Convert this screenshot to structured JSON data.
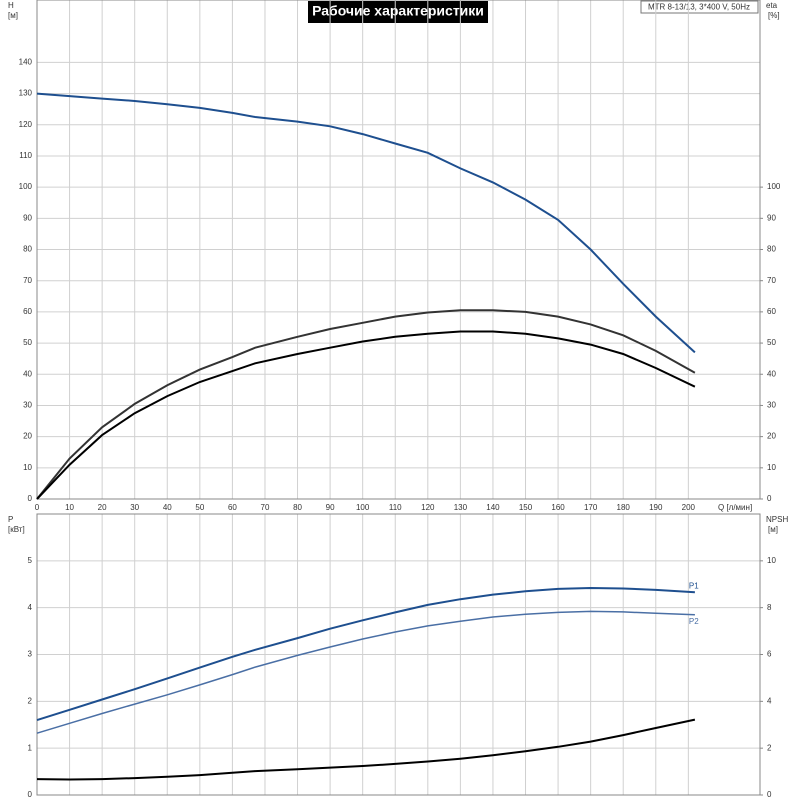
{
  "header": {
    "title": "Рабочие характеристики",
    "model": "MTR 8-13/13, 3*400 V, 50Hz"
  },
  "chart_data": [
    {
      "type": "line",
      "y_label": "H",
      "y_unit": "[м]",
      "y2_label": "eta",
      "y2_unit": "[%]",
      "x_label": "Q [л/мин]",
      "xlim": [
        0,
        222
      ],
      "xticks": [
        0,
        10,
        20,
        30,
        40,
        50,
        60,
        70,
        80,
        90,
        100,
        110,
        120,
        130,
        140,
        150,
        160,
        170,
        180,
        190,
        200
      ],
      "xtick_labels": true,
      "ylim": [
        0,
        160
      ],
      "yticks": [
        0,
        10,
        20,
        30,
        40,
        50,
        60,
        70,
        80,
        90,
        100,
        110,
        120,
        130,
        140
      ],
      "y2lim": [
        0,
        160
      ],
      "y2ticks": [
        0,
        10,
        20,
        30,
        40,
        50,
        60,
        70,
        80,
        90,
        100
      ],
      "grid": true,
      "x": [
        0,
        10,
        20,
        30,
        40,
        50,
        60,
        67,
        80,
        90,
        100,
        110,
        120,
        130,
        140,
        150,
        160,
        170,
        180,
        190,
        202
      ],
      "series": [
        {
          "color": "#1e4f8f",
          "values": [
            130,
            129.2,
            128.4,
            127.6,
            126.6,
            125.4,
            123.8,
            122.5,
            121,
            119.5,
            117,
            114,
            111,
            106,
            101.5,
            96,
            89.5,
            80,
            69,
            58.5,
            47
          ]
        },
        {
          "color": "#333333",
          "axis": "y2",
          "values": [
            0,
            13,
            23,
            30.5,
            36.5,
            41.5,
            45.5,
            48.5,
            52,
            54.5,
            56.5,
            58.5,
            59.8,
            60.5,
            60.5,
            60,
            58.5,
            56,
            52.5,
            47.5,
            40.5
          ]
        },
        {
          "color": "#000000",
          "axis": "y2",
          "values": [
            0,
            11,
            20.5,
            27.5,
            33,
            37.5,
            41,
            43.5,
            46.5,
            48.5,
            50.5,
            52,
            53,
            53.7,
            53.7,
            53,
            51.5,
            49.5,
            46.5,
            42,
            36
          ]
        }
      ]
    },
    {
      "type": "line",
      "y_label": "P",
      "y_unit": "[кВт]",
      "y2_label": "NPSH",
      "y2_unit": "[м]",
      "xlim": [
        0,
        222
      ],
      "xticks": [
        0,
        10,
        20,
        30,
        40,
        50,
        60,
        70,
        80,
        90,
        100,
        110,
        120,
        130,
        140,
        150,
        160,
        170,
        180,
        190,
        200
      ],
      "xtick_labels": false,
      "ylim": [
        0,
        6
      ],
      "yticks": [
        0,
        1,
        2,
        3,
        4,
        5
      ],
      "y2lim": [
        0,
        12
      ],
      "y2ticks": [
        0,
        2,
        4,
        6,
        8,
        10
      ],
      "grid": true,
      "x": [
        0,
        10,
        20,
        30,
        40,
        50,
        60,
        67,
        80,
        90,
        100,
        110,
        120,
        130,
        140,
        150,
        160,
        170,
        180,
        190,
        202
      ],
      "series": [
        {
          "label": "P1",
          "color": "#1e4f8f",
          "values": [
            1.6,
            1.82,
            2.04,
            2.26,
            2.49,
            2.72,
            2.95,
            3.1,
            3.35,
            3.55,
            3.73,
            3.9,
            4.06,
            4.18,
            4.28,
            4.35,
            4.4,
            4.42,
            4.41,
            4.38,
            4.33
          ]
        },
        {
          "label": "P2",
          "color": "#4a6fa5",
          "values": [
            1.32,
            1.53,
            1.74,
            1.94,
            2.14,
            2.35,
            2.57,
            2.73,
            2.98,
            3.16,
            3.33,
            3.48,
            3.61,
            3.71,
            3.8,
            3.86,
            3.9,
            3.92,
            3.91,
            3.88,
            3.85
          ]
        },
        {
          "color": "#000000",
          "axis": "y2",
          "values": [
            0.68,
            0.66,
            0.68,
            0.72,
            0.78,
            0.85,
            0.95,
            1.02,
            1.1,
            1.17,
            1.24,
            1.33,
            1.43,
            1.55,
            1.7,
            1.87,
            2.06,
            2.28,
            2.56,
            2.86,
            3.22
          ]
        }
      ]
    }
  ]
}
